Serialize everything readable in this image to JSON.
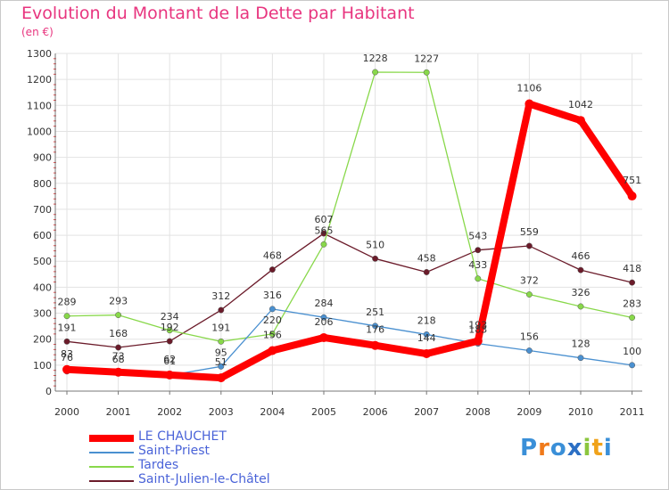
{
  "chart_data": {
    "type": "line",
    "title": "Evolution du Montant de la Dette par Habitant",
    "subtitle": "(en €)",
    "xlabel": "",
    "ylabel": "",
    "ylim": [
      0,
      1300
    ],
    "yticks": [
      0,
      100,
      200,
      300,
      400,
      500,
      600,
      700,
      800,
      900,
      1000,
      1100,
      1200,
      1300
    ],
    "grid": true,
    "categories": [
      "2000",
      "2001",
      "2002",
      "2003",
      "2004",
      "2005",
      "2006",
      "2007",
      "2008",
      "2009",
      "2010",
      "2011"
    ],
    "series": [
      {
        "name": "Saint-Julien-le-Châtel",
        "color": "#6b1b2a",
        "values": [
          191,
          168,
          192,
          312,
          468,
          607,
          510,
          458,
          543,
          559,
          466,
          418
        ]
      },
      {
        "name": "Tardes",
        "color": "#88d84a",
        "values": [
          289,
          293,
          234,
          191,
          220,
          565,
          1228,
          1227,
          433,
          372,
          326,
          283
        ]
      },
      {
        "name": "Saint-Priest",
        "color": "#4a90d0",
        "values": [
          76,
          68,
          61,
          95,
          316,
          284,
          251,
          218,
          183,
          156,
          128,
          100
        ]
      },
      {
        "name": "LE CHAUCHET",
        "color": "#ff0000",
        "values": [
          83,
          73,
          62,
          51,
          156,
          206,
          176,
          144,
          193,
          1106,
          1042,
          751
        ]
      }
    ]
  },
  "legend": [
    {
      "name": "LE CHAUCHET",
      "color": "#ff0000"
    },
    {
      "name": "Saint-Priest",
      "color": "#4a90d0"
    },
    {
      "name": "Tardes",
      "color": "#88d84a"
    },
    {
      "name": "Saint-Julien-le-Châtel",
      "color": "#6b1b2a"
    }
  ],
  "logo": {
    "text": "Proxiti",
    "colors": [
      "#3a8fd8",
      "#f07a1a",
      "#3a8fd8",
      "#2b6fc4",
      "#8bc63e",
      "#f0a21a",
      "#3a8fd8"
    ]
  }
}
